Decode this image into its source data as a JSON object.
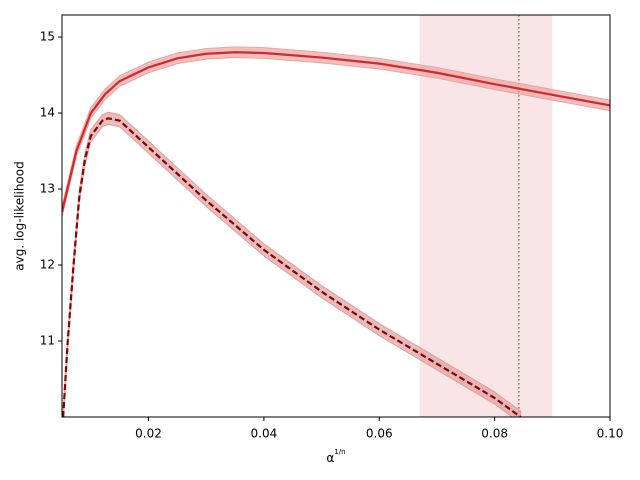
{
  "chart_data": {
    "type": "line",
    "xlabel": {
      "base": "α",
      "exponent": "1/n"
    },
    "ylabel": "avg. log-likelihood",
    "xlim": [
      0.005,
      0.1
    ],
    "ylim": [
      10,
      15.29
    ],
    "xticks": [
      0.02,
      0.04,
      0.06,
      0.08,
      {
        "value": 0.1,
        "label": "0.10"
      }
    ],
    "yticks": [
      11,
      12,
      13,
      14,
      15
    ],
    "span": {
      "x": [
        0.067,
        0.09
      ],
      "color": "#f4cccc"
    },
    "vline": {
      "x": 0.0842,
      "color": "#d9534f"
    },
    "series": [
      {
        "color": "#d62728",
        "linestyle": "solid",
        "band_color": "#eba4a4",
        "error": 0.07,
        "x": [
          0.005,
          0.0075,
          0.01,
          0.0125,
          0.015,
          0.02,
          0.025,
          0.03,
          0.035,
          0.04,
          0.05,
          0.06,
          0.07,
          0.08,
          0.09,
          0.1
        ],
        "values": [
          12.7,
          13.5,
          14.0,
          14.25,
          14.42,
          14.6,
          14.72,
          14.78,
          14.8,
          14.79,
          14.73,
          14.65,
          14.53,
          14.38,
          14.24,
          14.1
        ]
      },
      {
        "color": "#8b0000",
        "linestyle": "dashed",
        "band_color": "#e0a0a0",
        "error": 0.08,
        "x": [
          0.0052,
          0.006,
          0.007,
          0.008,
          0.009,
          0.01,
          0.012,
          0.013,
          0.015,
          0.02,
          0.03,
          0.04,
          0.05,
          0.06,
          0.07,
          0.08,
          0.0845
        ],
        "values": [
          10.0,
          11.0,
          12.0,
          12.9,
          13.4,
          13.7,
          13.9,
          13.93,
          13.9,
          13.55,
          12.85,
          12.2,
          11.65,
          11.15,
          10.7,
          10.25,
          10.0
        ]
      }
    ]
  }
}
